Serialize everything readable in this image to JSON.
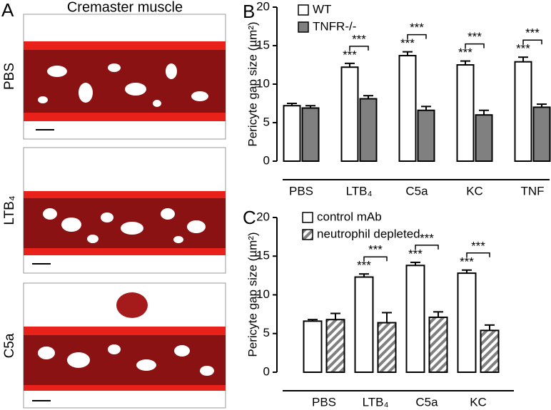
{
  "panel_a": {
    "label": "A",
    "title": "Cremaster muscle",
    "rows": [
      "PBS",
      "LTB₄",
      "C5a"
    ]
  },
  "chart_data": [
    {
      "type": "bar",
      "panel": "B",
      "ylabel": "Pericyte gap size (µm²)",
      "categories": [
        "PBS",
        "LTB₄",
        "C5a",
        "KC",
        "TNF"
      ],
      "series": [
        {
          "name": "WT",
          "color": "#ffffff",
          "values": [
            7.2,
            12.2,
            13.7,
            12.5,
            12.9
          ],
          "errors": [
            0.3,
            0.5,
            0.5,
            0.5,
            0.6
          ]
        },
        {
          "name": "TNFR-/-",
          "color": "#808080",
          "values": [
            6.9,
            8.1,
            6.6,
            6.0,
            7.0
          ],
          "errors": [
            0.3,
            0.4,
            0.5,
            0.6,
            0.4
          ]
        }
      ],
      "significance_first": [
        null,
        "***",
        "***",
        "***",
        "***"
      ],
      "significance_pair": [
        null,
        "***",
        "***",
        "***",
        "***"
      ],
      "ylim": [
        0,
        20
      ],
      "yticks": [
        0,
        5,
        10,
        15,
        20
      ]
    },
    {
      "type": "bar",
      "panel": "C",
      "ylabel": "Pericyte gap size (µm²)",
      "categories": [
        "PBS",
        "LTB₄",
        "C5a",
        "KC"
      ],
      "series": [
        {
          "name": "control mAb",
          "color": "#ffffff",
          "values": [
            6.6,
            12.3,
            13.8,
            12.8
          ],
          "errors": [
            0.2,
            0.4,
            0.4,
            0.4
          ]
        },
        {
          "name": "neutrophil depleted",
          "color": "#808080",
          "pattern": "hatch",
          "values": [
            6.8,
            6.4,
            7.1,
            5.4
          ],
          "errors": [
            0.8,
            1.3,
            0.7,
            0.7
          ]
        }
      ],
      "significance_first": [
        null,
        "***",
        "***",
        "***"
      ],
      "significance_pair": [
        null,
        "***",
        "***",
        "***"
      ],
      "ylim": [
        0,
        20
      ],
      "yticks": [
        0,
        5,
        10,
        15,
        20
      ]
    }
  ]
}
